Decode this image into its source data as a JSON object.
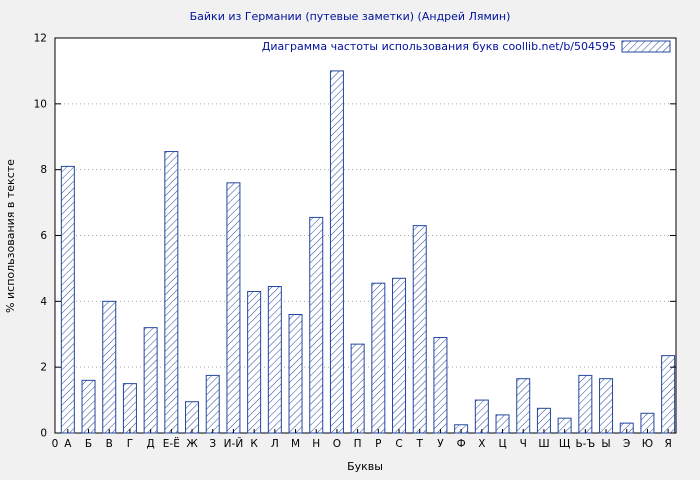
{
  "title": "Байки из Германии (путевые заметки) (Андрей Лямин)",
  "legend": {
    "label": "Диаграмма частоты использования букв  coollib.net/b/504595"
  },
  "colors": {
    "figure_background": "#f1f1f1",
    "plot_background": "#ffffff",
    "bar_stroke": "#23479e",
    "title_text": "#00119c",
    "grid": "#a9a9a9"
  },
  "chart_data": {
    "type": "bar",
    "title": "Байки из Германии (путевые заметки) (Андрей Лямин)",
    "xlabel": "Буквы",
    "ylabel": "% использования в тексте",
    "ylim": [
      0,
      12
    ],
    "yticks": [
      0,
      2,
      4,
      6,
      8,
      10,
      12
    ],
    "origin_label": "0",
    "grid": true,
    "legend_position": "top-right",
    "legend_label": "Диаграмма частоты использования букв  coollib.net/b/504595",
    "categories": [
      "А",
      "Б",
      "В",
      "Г",
      "Д",
      "Е-Ё",
      "Ж",
      "З",
      "И-Й",
      "К",
      "Л",
      "М",
      "Н",
      "О",
      "П",
      "Р",
      "С",
      "Т",
      "У",
      "Ф",
      "Х",
      "Ц",
      "Ч",
      "Ш",
      "Щ",
      "Ь-Ъ",
      "Ы",
      "Э",
      "Ю",
      "Я"
    ],
    "values": [
      8.1,
      1.6,
      4.0,
      1.5,
      3.2,
      8.55,
      0.95,
      1.75,
      7.6,
      4.3,
      4.45,
      3.6,
      6.55,
      11.0,
      2.7,
      4.55,
      4.7,
      6.3,
      2.9,
      0.25,
      1.0,
      0.55,
      1.65,
      0.75,
      0.45,
      1.75,
      1.65,
      0.3,
      0.6,
      2.35
    ]
  }
}
